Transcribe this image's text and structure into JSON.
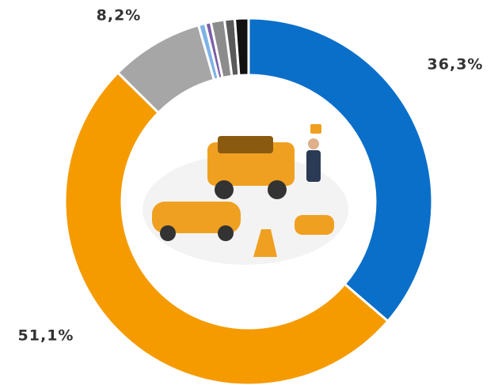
{
  "chart_data": {
    "type": "donut",
    "values": [
      36.3,
      51.1,
      8.2,
      0.6,
      0.5,
      1.2,
      0.9,
      1.2
    ],
    "value_labels": [
      "36,3%",
      "51,1%",
      "8,2%",
      null,
      null,
      null,
      null,
      null
    ],
    "colors": [
      "#0a6fc9",
      "#f59b00",
      "#a6a6a6",
      "#7fb3e6",
      "#7a5fa8",
      "#8c8c8c",
      "#5a5a5a",
      "#111111"
    ]
  }
}
